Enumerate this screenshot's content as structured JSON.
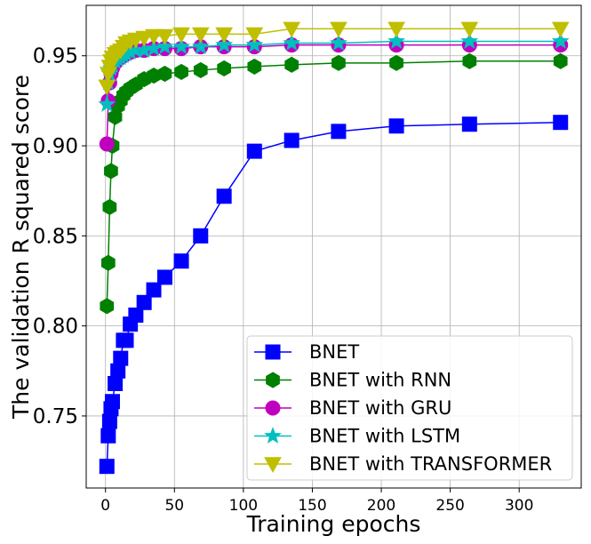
{
  "chart_data": {
    "type": "line",
    "title": "",
    "xlabel": "Training epochs",
    "ylabel": "The validation R squared score",
    "xlim": [
      -14,
      345
    ],
    "ylim": [
      0.71,
      0.978
    ],
    "xticks": [
      0,
      50,
      100,
      150,
      200,
      250,
      300
    ],
    "yticks": [
      0.75,
      0.8,
      0.85,
      0.9,
      0.95
    ],
    "ytick_labels": [
      "0.75",
      "0.80",
      "0.85",
      "0.90",
      "0.95"
    ],
    "grid": true,
    "legend_position": "lower-right",
    "series": [
      {
        "name": "BNET",
        "color": "#0000ff",
        "marker": "square",
        "x": [
          1,
          2,
          3,
          4,
          5,
          7,
          9,
          11,
          13,
          15,
          18,
          22,
          28,
          35,
          43,
          55,
          69,
          86,
          108,
          135,
          169,
          211,
          264,
          330
        ],
        "y": [
          0.722,
          0.739,
          0.747,
          0.754,
          0.758,
          0.768,
          0.775,
          0.782,
          0.792,
          0.792,
          0.801,
          0.806,
          0.813,
          0.82,
          0.827,
          0.836,
          0.85,
          0.872,
          0.897,
          0.903,
          0.908,
          0.911,
          0.912,
          0.913
        ]
      },
      {
        "name": "BNET with RNN",
        "color": "#008000",
        "marker": "hexagon",
        "x": [
          1,
          2,
          3,
          4,
          5,
          7,
          9,
          11,
          13,
          15,
          18,
          22,
          28,
          35,
          43,
          55,
          69,
          86,
          108,
          135,
          169,
          211,
          264,
          330
        ],
        "y": [
          0.811,
          0.835,
          0.866,
          0.886,
          0.9,
          0.916,
          0.922,
          0.925,
          0.928,
          0.93,
          0.932,
          0.934,
          0.937,
          0.939,
          0.94,
          0.941,
          0.942,
          0.943,
          0.944,
          0.945,
          0.946,
          0.946,
          0.947,
          0.947
        ]
      },
      {
        "name": "BNET with GRU",
        "color": "#bf00bf",
        "marker": "circle",
        "x": [
          1,
          2,
          3,
          4,
          5,
          7,
          9,
          11,
          13,
          15,
          18,
          22,
          28,
          35,
          43,
          55,
          69,
          86,
          108,
          135,
          169,
          211,
          264,
          330
        ],
        "y": [
          0.901,
          0.925,
          0.935,
          0.94,
          0.943,
          0.946,
          0.948,
          0.949,
          0.95,
          0.951,
          0.952,
          0.953,
          0.953,
          0.954,
          0.954,
          0.954,
          0.955,
          0.955,
          0.955,
          0.956,
          0.956,
          0.956,
          0.956,
          0.956
        ]
      },
      {
        "name": "BNET with LSTM",
        "color": "#00bfbf",
        "marker": "star",
        "x": [
          1,
          2,
          3,
          4,
          5,
          7,
          9,
          11,
          13,
          15,
          18,
          22,
          28,
          35,
          43,
          55,
          69,
          86,
          108,
          135,
          169,
          211,
          264,
          330
        ],
        "y": [
          0.923,
          0.935,
          0.94,
          0.943,
          0.945,
          0.947,
          0.948,
          0.949,
          0.95,
          0.951,
          0.952,
          0.953,
          0.953,
          0.954,
          0.955,
          0.955,
          0.955,
          0.956,
          0.956,
          0.957,
          0.957,
          0.958,
          0.958,
          0.958
        ]
      },
      {
        "name": "BNET with TRANSFORMER",
        "color": "#bfbf00",
        "marker": "triangle-down",
        "x": [
          1,
          2,
          3,
          4,
          5,
          7,
          9,
          11,
          13,
          15,
          18,
          22,
          28,
          35,
          43,
          55,
          69,
          86,
          108,
          135,
          169,
          211,
          264,
          330
        ],
        "y": [
          0.933,
          0.94,
          0.944,
          0.947,
          0.949,
          0.951,
          0.952,
          0.953,
          0.955,
          0.957,
          0.958,
          0.959,
          0.96,
          0.961,
          0.961,
          0.962,
          0.962,
          0.962,
          0.962,
          0.965,
          0.965,
          0.965,
          0.965,
          0.965
        ]
      }
    ]
  }
}
